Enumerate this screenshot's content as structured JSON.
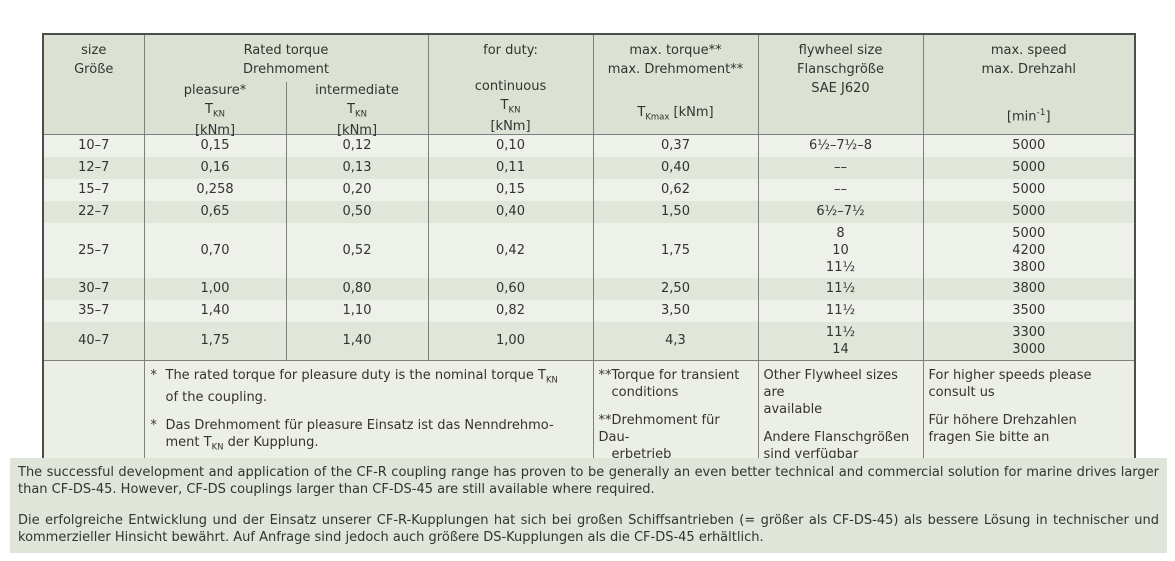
{
  "colors": {
    "header_bg": "#dbe1d3",
    "row_light": "#eef1e9",
    "row_dark": "#e0e6da",
    "footnote_bg": "#ecefe5",
    "notes_bg": "#dfe5d8",
    "border": "#7f7f7f",
    "text": "#333333"
  },
  "table": {
    "header": {
      "size_lines": [
        "size",
        "Größe"
      ],
      "rated_group": [
        "Rated torque",
        "Drehmoment"
      ],
      "pleasure_label": "pleasure*",
      "intermediate_label": "intermediate",
      "duty_label": "for duty:",
      "continuous_label": "continuous",
      "t_symbol": "T",
      "t_sub": "KN",
      "unit": "[kNm]",
      "max_torque_lines": [
        "max. torque**",
        "max. Drehmoment**"
      ],
      "tmax_symbol": "T",
      "tmax_sub": "Kmax",
      "tmax_unit": " [kNm]",
      "flywheel_lines": [
        "flywheel size",
        "Flanschgröße",
        "SAE J620"
      ],
      "speed_lines": [
        "max. speed",
        "max. Drehzahl"
      ],
      "speed_unit": {
        "pre": "[min",
        "sup": "-1",
        "post": "]"
      }
    },
    "rows": [
      {
        "size": "10–7",
        "pleasure": "0,15",
        "intermediate": "0,12",
        "continuous": "0,10",
        "max_torque": "0,37",
        "flywheel": [
          "6½–7½–8"
        ],
        "speed": [
          "5000"
        ]
      },
      {
        "size": "12–7",
        "pleasure": "0,16",
        "intermediate": "0,13",
        "continuous": "0,11",
        "max_torque": "0,40",
        "flywheel": [
          "––"
        ],
        "speed": [
          "5000"
        ]
      },
      {
        "size": "15–7",
        "pleasure": "0,258",
        "intermediate": "0,20",
        "continuous": "0,15",
        "max_torque": "0,62",
        "flywheel": [
          "––"
        ],
        "speed": [
          "5000"
        ]
      },
      {
        "size": "22–7",
        "pleasure": "0,65",
        "intermediate": "0,50",
        "continuous": "0,40",
        "max_torque": "1,50",
        "flywheel": [
          "6½–7½"
        ],
        "speed": [
          "5000"
        ]
      },
      {
        "size": "25–7",
        "pleasure": "0,70",
        "intermediate": "0,52",
        "continuous": "0,42",
        "max_torque": "1,75",
        "flywheel": [
          "8",
          "10",
          "11½"
        ],
        "speed": [
          "5000",
          "4200",
          "3800"
        ]
      },
      {
        "size": "30–7",
        "pleasure": "1,00",
        "intermediate": "0,80",
        "continuous": "0,60",
        "max_torque": "2,50",
        "flywheel": [
          "11½"
        ],
        "speed": [
          "3800"
        ]
      },
      {
        "size": "35–7",
        "pleasure": "1,40",
        "intermediate": "1,10",
        "continuous": "0,82",
        "max_torque": "3,50",
        "flywheel": [
          "11½"
        ],
        "speed": [
          "3500"
        ]
      },
      {
        "size": "40–7",
        "pleasure": "1,75",
        "intermediate": "1,40",
        "continuous": "1,00",
        "max_torque": "4,3",
        "flywheel": [
          "11½",
          "14"
        ],
        "speed": [
          "3300",
          "3000"
        ]
      }
    ],
    "footnotes": {
      "rated": [
        {
          "marker": "*",
          "parts": [
            "The rated torque for pleasure duty is the nominal torque T",
            {
              "sub": "KN"
            },
            {
              "br": true
            },
            "of the coupling."
          ]
        },
        {
          "marker": "*",
          "parts": [
            "Das Drehmoment für pleasure Einsatz ist das Nenndrehmo-",
            {
              "br": true
            },
            "ment T",
            {
              "sub": "KN"
            },
            " der Kupplung."
          ]
        }
      ],
      "max_torque": [
        [
          "**Torque for transient",
          "conditions"
        ],
        [
          "**Drehmoment für Dau-",
          "erbetrieb"
        ]
      ],
      "flywheel": [
        [
          "Other Flywheel sizes are",
          "available"
        ],
        [
          "Andere Flanschgrößen",
          "sind verfügbar"
        ]
      ],
      "speed": [
        [
          "For higher speeds please",
          "consult us"
        ],
        [
          "Für höhere Drehzahlen",
          "fragen Sie bitte an"
        ]
      ]
    }
  },
  "paragraphs": {
    "en": "The successful development and application of the CF-R coupling range has proven to be generally an even better technical and commercial solution for marine drives larger than CF-DS-45. However, CF-DS couplings larger than CF-DS-45 are still available where required.",
    "de": "Die erfolgreiche Entwicklung und der Einsatz unserer CF-R-Kupplungen hat sich bei großen Schiffsantrieben (= größer als CF-DS-45) als bessere Lösung in technischer und kommerzieller Hinsicht bewährt. Auf Anfrage sind jedoch auch größere DS-Kupplungen als die CF-DS-45 erhältlich."
  }
}
